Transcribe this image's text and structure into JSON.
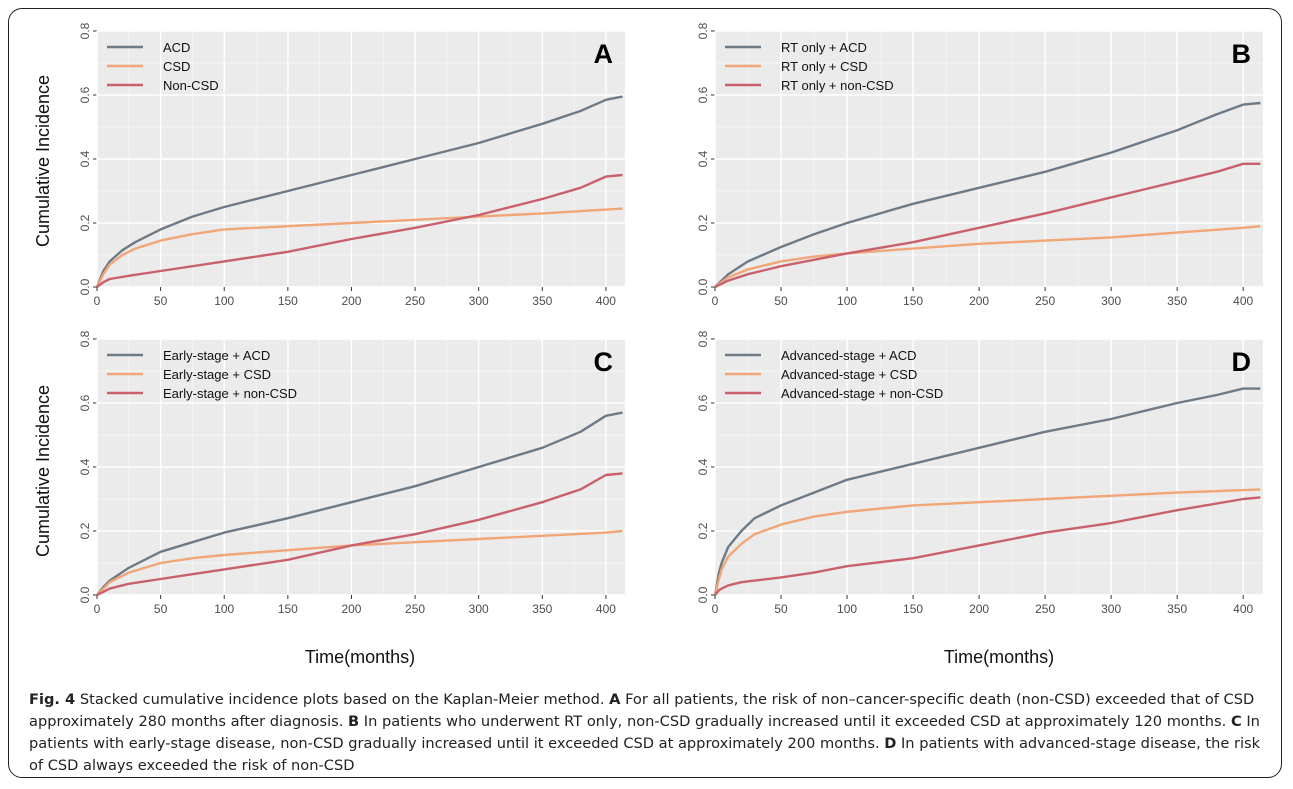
{
  "figure": {
    "ylabel": "Cumulative Incidence",
    "xlabel": "Time(months)",
    "colors": {
      "ACD": "#6e7b87",
      "CSD": "#f0a677",
      "NonCSD": "#c9616d",
      "panel_bg": "#ebebeb",
      "grid": "#ffffff"
    },
    "caption": {
      "fig_label": "Fig. 4",
      "intro": "Stacked cumulative incidence plots based on the Kaplan-Meier method.",
      "parts": [
        {
          "letter": "A",
          "text": "For all patients, the risk of non–cancer-specific death (non-CSD) exceeded that of CSD approximately 280 months after diagnosis."
        },
        {
          "letter": "B",
          "text": "In patients who underwent RT only, non-CSD gradually increased until it exceeded CSD at approximately 120 months."
        },
        {
          "letter": "C",
          "text": "In patients with early-stage disease, non-CSD gradually increased until it exceeded CSD at approximately 200 months."
        },
        {
          "letter": "D",
          "text": "In patients with advanced-stage disease, the risk of CSD always exceeded the risk of non-CSD"
        }
      ]
    }
  },
  "chart_data": [
    {
      "type": "line",
      "panel_label": "A",
      "xlim": [
        0,
        415
      ],
      "ylim": [
        0,
        0.8
      ],
      "x_ticks": [
        0,
        50,
        100,
        150,
        200,
        250,
        300,
        350,
        400
      ],
      "y_ticks": [
        "0.0",
        "0.2",
        "0.4",
        "0.6",
        "0.8"
      ],
      "legend_position": "top-left",
      "series": [
        {
          "name": "ACD",
          "color": "#6e7b87",
          "x": [
            0,
            5,
            10,
            20,
            30,
            50,
            75,
            100,
            150,
            200,
            250,
            300,
            350,
            380,
            400,
            413
          ],
          "y": [
            0,
            0.05,
            0.08,
            0.115,
            0.14,
            0.18,
            0.22,
            0.25,
            0.3,
            0.35,
            0.4,
            0.45,
            0.51,
            0.55,
            0.585,
            0.595
          ]
        },
        {
          "name": "CSD",
          "color": "#f0a677",
          "x": [
            0,
            5,
            10,
            20,
            30,
            50,
            75,
            100,
            150,
            200,
            250,
            300,
            350,
            413
          ],
          "y": [
            0,
            0.04,
            0.07,
            0.1,
            0.12,
            0.145,
            0.165,
            0.18,
            0.19,
            0.2,
            0.21,
            0.22,
            0.23,
            0.245
          ]
        },
        {
          "name": "Non-CSD",
          "color": "#c9616d",
          "x": [
            0,
            5,
            10,
            25,
            50,
            100,
            150,
            200,
            250,
            300,
            350,
            380,
            400,
            413
          ],
          "y": [
            0,
            0.015,
            0.025,
            0.035,
            0.05,
            0.08,
            0.11,
            0.15,
            0.185,
            0.225,
            0.275,
            0.31,
            0.345,
            0.35
          ]
        }
      ]
    },
    {
      "type": "line",
      "panel_label": "B",
      "xlim": [
        0,
        415
      ],
      "ylim": [
        0,
        0.8
      ],
      "x_ticks": [
        0,
        50,
        100,
        150,
        200,
        250,
        300,
        350,
        400
      ],
      "y_ticks": [
        "0.0",
        "0.2",
        "0.4",
        "0.6",
        "0.8"
      ],
      "legend_position": "top-left",
      "series": [
        {
          "name": "RT only + ACD",
          "color": "#6e7b87",
          "x": [
            0,
            5,
            10,
            25,
            50,
            75,
            100,
            150,
            200,
            250,
            300,
            350,
            380,
            400,
            413
          ],
          "y": [
            0,
            0.02,
            0.04,
            0.08,
            0.125,
            0.165,
            0.2,
            0.26,
            0.31,
            0.36,
            0.42,
            0.49,
            0.54,
            0.57,
            0.575
          ]
        },
        {
          "name": "RT only + CSD",
          "color": "#f0a677",
          "x": [
            0,
            5,
            10,
            25,
            50,
            75,
            100,
            150,
            200,
            250,
            300,
            350,
            400,
            413
          ],
          "y": [
            0,
            0.015,
            0.03,
            0.055,
            0.08,
            0.095,
            0.105,
            0.12,
            0.135,
            0.145,
            0.155,
            0.17,
            0.185,
            0.19
          ]
        },
        {
          "name": "RT only + non-CSD",
          "color": "#c9616d",
          "x": [
            0,
            5,
            10,
            25,
            50,
            75,
            100,
            150,
            200,
            250,
            300,
            350,
            380,
            400,
            413
          ],
          "y": [
            0,
            0.01,
            0.02,
            0.04,
            0.065,
            0.085,
            0.105,
            0.14,
            0.185,
            0.23,
            0.28,
            0.33,
            0.36,
            0.385,
            0.385
          ]
        }
      ]
    },
    {
      "type": "line",
      "panel_label": "C",
      "xlim": [
        0,
        415
      ],
      "ylim": [
        0,
        0.8
      ],
      "x_ticks": [
        0,
        50,
        100,
        150,
        200,
        250,
        300,
        350,
        400
      ],
      "y_ticks": [
        "0.0",
        "0.2",
        "0.4",
        "0.6",
        "0.8"
      ],
      "legend_position": "top-left",
      "series": [
        {
          "name": "Early-stage + ACD",
          "color": "#6e7b87",
          "x": [
            0,
            5,
            10,
            25,
            50,
            75,
            100,
            150,
            200,
            250,
            300,
            350,
            380,
            400,
            413
          ],
          "y": [
            0,
            0.025,
            0.045,
            0.085,
            0.135,
            0.165,
            0.195,
            0.24,
            0.29,
            0.34,
            0.4,
            0.46,
            0.51,
            0.56,
            0.57
          ]
        },
        {
          "name": "Early-stage + CSD",
          "color": "#f0a677",
          "x": [
            0,
            5,
            10,
            25,
            50,
            75,
            100,
            150,
            200,
            250,
            300,
            350,
            400,
            413
          ],
          "y": [
            0,
            0.02,
            0.04,
            0.07,
            0.1,
            0.115,
            0.125,
            0.14,
            0.155,
            0.165,
            0.175,
            0.185,
            0.195,
            0.2
          ]
        },
        {
          "name": "Early-stage + non-CSD",
          "color": "#c9616d",
          "x": [
            0,
            5,
            10,
            25,
            50,
            75,
            100,
            150,
            200,
            250,
            300,
            350,
            380,
            400,
            413
          ],
          "y": [
            0,
            0.01,
            0.02,
            0.035,
            0.05,
            0.065,
            0.08,
            0.11,
            0.155,
            0.19,
            0.235,
            0.29,
            0.33,
            0.375,
            0.38
          ]
        }
      ]
    },
    {
      "type": "line",
      "panel_label": "D",
      "xlim": [
        0,
        415
      ],
      "ylim": [
        0,
        0.8
      ],
      "x_ticks": [
        0,
        50,
        100,
        150,
        200,
        250,
        300,
        350,
        400
      ],
      "y_ticks": [
        "0.0",
        "0.2",
        "0.4",
        "0.6",
        "0.8"
      ],
      "legend_position": "top-left",
      "series": [
        {
          "name": "Advanced-stage + ACD",
          "color": "#6e7b87",
          "x": [
            0,
            3,
            5,
            10,
            20,
            30,
            50,
            75,
            100,
            150,
            200,
            250,
            300,
            350,
            380,
            400,
            413
          ],
          "y": [
            0,
            0.07,
            0.1,
            0.15,
            0.2,
            0.24,
            0.28,
            0.32,
            0.36,
            0.41,
            0.46,
            0.51,
            0.55,
            0.6,
            0.625,
            0.645,
            0.645
          ]
        },
        {
          "name": "Advanced-stage + CSD",
          "color": "#f0a677",
          "x": [
            0,
            3,
            5,
            10,
            20,
            30,
            50,
            75,
            100,
            150,
            200,
            250,
            300,
            350,
            413
          ],
          "y": [
            0,
            0.05,
            0.08,
            0.12,
            0.16,
            0.19,
            0.22,
            0.245,
            0.26,
            0.28,
            0.29,
            0.3,
            0.31,
            0.32,
            0.33
          ]
        },
        {
          "name": "Advanced-stage + non-CSD",
          "color": "#c9616d",
          "x": [
            0,
            3,
            5,
            10,
            20,
            50,
            75,
            100,
            150,
            200,
            250,
            300,
            350,
            400,
            413
          ],
          "y": [
            0,
            0.015,
            0.02,
            0.03,
            0.04,
            0.055,
            0.07,
            0.09,
            0.115,
            0.155,
            0.195,
            0.225,
            0.265,
            0.3,
            0.305
          ]
        }
      ]
    }
  ]
}
